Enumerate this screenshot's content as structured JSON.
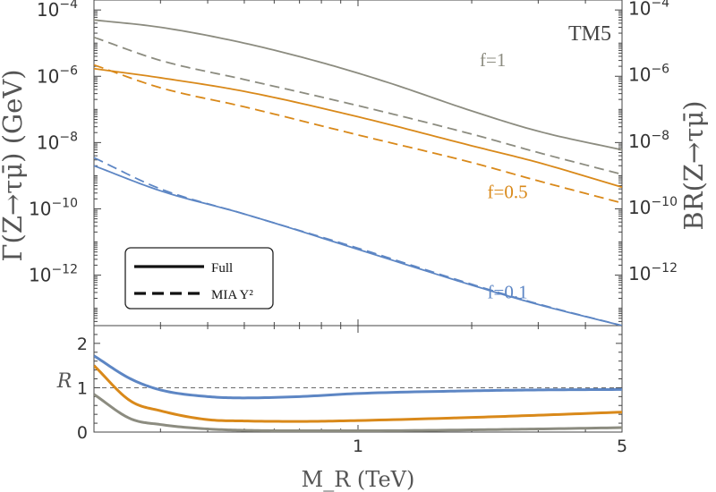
{
  "chart_data": [
    {
      "type": "line",
      "title": "TM5",
      "xlabel": "M_R (TeV)",
      "ylabel": "Γ(Z→τμ̄) (GeV)",
      "ylabel_right": "BR(Z→τμ̄)",
      "xscale": "log",
      "yscale": "log",
      "xlim": [
        0.2,
        5
      ],
      "ylim": [
        3e-14,
        0.0002
      ],
      "yticks_left": [
        {
          "value": 0.0001,
          "base": "10",
          "exp": "−4"
        },
        {
          "value": 1e-06,
          "base": "10",
          "exp": "−6"
        },
        {
          "value": 1e-08,
          "base": "10",
          "exp": "−8"
        },
        {
          "value": 1e-10,
          "base": "10",
          "exp": "−10"
        },
        {
          "value": 1e-12,
          "base": "10",
          "exp": "−12"
        }
      ],
      "yticks_right": [
        {
          "value": 0.00011,
          "base": "10",
          "exp": "−4"
        },
        {
          "value": 1.1e-06,
          "base": "10",
          "exp": "−6"
        },
        {
          "value": 1.1e-08,
          "base": "10",
          "exp": "−8"
        },
        {
          "value": 1.1e-10,
          "base": "10",
          "exp": "−10"
        },
        {
          "value": 1.1e-12,
          "base": "10",
          "exp": "−12"
        }
      ],
      "legend": {
        "placement": "bottom-left",
        "entries": [
          {
            "label": "Full",
            "style": "solid"
          },
          {
            "label": "MIA Y²",
            "style": "dashed"
          }
        ]
      },
      "series": [
        {
          "name": "f=1 Full",
          "color": "#8c8c80",
          "style": "solid",
          "x": [
            0.2,
            0.3,
            0.5,
            0.8,
            1.2,
            2,
            3,
            5
          ],
          "y": [
            5e-05,
            3e-05,
            1e-05,
            2.6e-06,
            6.5e-07,
            9e-08,
            2.2e-08,
            6e-09
          ]
        },
        {
          "name": "f=1 MIA",
          "color": "#8c8c80",
          "style": "dashed",
          "x": [
            0.2,
            0.3,
            0.5,
            1,
            2,
            3,
            5
          ],
          "y": [
            1.5e-05,
            3e-06,
            8e-07,
            1.3e-07,
            1.8e-08,
            5e-09,
            1.1e-09
          ]
        },
        {
          "name": "f=0.5 Full",
          "color": "#d9891a",
          "style": "solid",
          "x": [
            0.2,
            0.3,
            0.5,
            1,
            2,
            3,
            5
          ],
          "y": [
            1.7e-06,
            9e-07,
            3.5e-07,
            6e-08,
            8e-09,
            2.5e-09,
            4.5e-10
          ]
        },
        {
          "name": "f=0.5 MIA",
          "color": "#d9891a",
          "style": "dashed",
          "x": [
            0.2,
            0.3,
            0.5,
            1,
            2,
            3,
            5
          ],
          "y": [
            2.2e-06,
            4.5e-07,
            1.2e-07,
            1.7e-08,
            2.5e-09,
            7e-10,
            1.5e-10
          ]
        },
        {
          "name": "f=0.1 Full",
          "color": "#5d86c4",
          "style": "solid",
          "x": [
            0.2,
            0.3,
            0.5,
            1,
            2,
            3,
            5
          ],
          "y": [
            2e-09,
            3.5e-10,
            7e-11,
            6e-12,
            5e-13,
            1.3e-13,
            3e-14
          ]
        },
        {
          "name": "f=0.1 MIA",
          "color": "#5d86c4",
          "style": "dashed",
          "x": [
            0.2,
            0.3,
            0.5,
            1,
            2,
            3,
            5
          ],
          "y": [
            3.5e-09,
            4e-10,
            7e-11,
            6.5e-12,
            5.3e-13,
            1.35e-13,
            3e-14
          ]
        }
      ],
      "annotations": [
        {
          "text": "f=1",
          "x": 2.1,
          "y": 2e-06,
          "color": "#8c8c80"
        },
        {
          "text": "f=0.5",
          "x": 2.2,
          "y": 2.1e-10,
          "color": "#d9891a"
        },
        {
          "text": "f=0.1",
          "x": 2.2,
          "y": 2e-13,
          "color": "#5d86c4"
        }
      ]
    },
    {
      "type": "line",
      "xlabel": "M_R (TeV)",
      "ylabel": "R",
      "xscale": "log",
      "xlim": [
        0.2,
        5
      ],
      "ylim": [
        0,
        2.4
      ],
      "yticks": [
        0,
        1,
        2
      ],
      "xticks": [
        1,
        5
      ],
      "reference_line": {
        "y": 1,
        "style": "dashed"
      },
      "series": [
        {
          "name": "f=0.1",
          "color": "#5d86c4",
          "x": [
            0.2,
            0.25,
            0.3,
            0.4,
            0.5,
            0.7,
            1,
            2,
            3,
            5
          ],
          "y": [
            1.72,
            1.2,
            0.95,
            0.8,
            0.77,
            0.8,
            0.87,
            0.93,
            0.95,
            0.96
          ]
        },
        {
          "name": "f=0.5",
          "color": "#d9891a",
          "x": [
            0.2,
            0.25,
            0.3,
            0.4,
            0.5,
            0.7,
            1,
            2,
            3,
            5
          ],
          "y": [
            1.5,
            0.7,
            0.48,
            0.28,
            0.25,
            0.24,
            0.26,
            0.33,
            0.38,
            0.45
          ]
        },
        {
          "name": "f=1",
          "color": "#8c8c80",
          "x": [
            0.2,
            0.25,
            0.3,
            0.4,
            0.5,
            0.7,
            1,
            2,
            3,
            5
          ],
          "y": [
            0.85,
            0.3,
            0.17,
            0.07,
            0.04,
            0.03,
            0.03,
            0.05,
            0.07,
            0.1
          ]
        }
      ]
    }
  ]
}
